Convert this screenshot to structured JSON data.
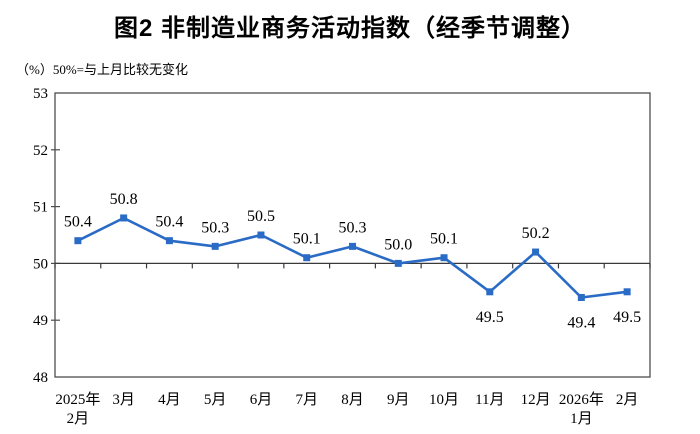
{
  "page": {
    "background": "#ffffff"
  },
  "chart_data": {
    "type": "line",
    "title": "图2 非制造业商务活动指数（经季节调整）",
    "unit_label": "（%）50%=与上月比较无变化",
    "categories": [
      "2025年\n2月",
      "3月",
      "4月",
      "5月",
      "6月",
      "7月",
      "8月",
      "9月",
      "10月",
      "11月",
      "12月",
      "2026年\n1月",
      "2月"
    ],
    "values": [
      50.4,
      50.8,
      50.4,
      50.3,
      50.5,
      50.1,
      50.3,
      50.0,
      50.1,
      49.5,
      50.2,
      49.4,
      49.5
    ],
    "data_labels": [
      "50.4",
      "50.8",
      "50.4",
      "50.3",
      "50.5",
      "50.1",
      "50.3",
      "50.0",
      "50.1",
      "49.5",
      "50.2",
      "49.4",
      "49.5"
    ],
    "label_position": [
      "above",
      "above",
      "above",
      "above",
      "above",
      "above",
      "above",
      "above",
      "above",
      "below",
      "above",
      "below",
      "below"
    ],
    "ylim": [
      48,
      53
    ],
    "yticks": [
      "48",
      "49",
      "50",
      "51",
      "52",
      "53"
    ],
    "baseline_value": 50,
    "legend": "none",
    "grid": "off",
    "colors": {
      "line": "#2a6bc5",
      "marker": "#2a6bc5",
      "axis": "#4d4d4d",
      "baseline": "#3a3a3a",
      "text": "#000000"
    }
  }
}
